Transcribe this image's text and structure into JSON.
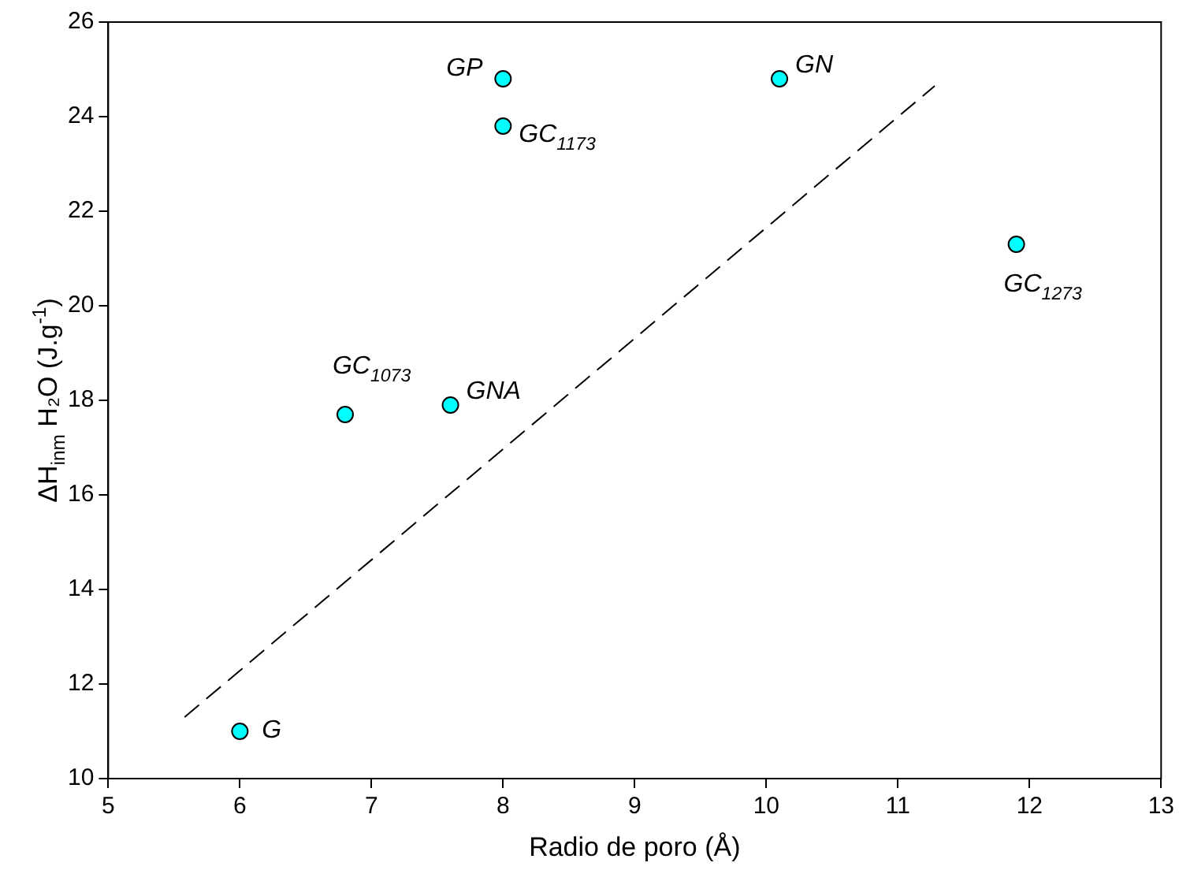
{
  "chart_data": {
    "type": "scatter",
    "xlabel": "Radio de poro (Å)",
    "ylabel": "ΔH$_{inm}$ H₂O (J.g$^{-1}$)",
    "xlim": [
      5,
      13
    ],
    "xticks": [
      5,
      6,
      7,
      8,
      9,
      10,
      11,
      12,
      13
    ],
    "ylim": [
      10,
      26
    ],
    "yticks": [
      10,
      12,
      14,
      16,
      18,
      20,
      22,
      24,
      26
    ],
    "grid": false,
    "legend": false,
    "marker": "circle",
    "series": [
      {
        "color": "#00ffff",
        "x": [
          6.0,
          6.8,
          7.6,
          8.0,
          8.0,
          10.1,
          11.9
        ],
        "values": [
          11.0,
          17.7,
          17.9,
          24.8,
          23.8,
          24.8,
          21.3
        ]
      },
      {
        "type": "line",
        "color": "#000000",
        "line_style": "dashed",
        "marker": "none",
        "x": [
          5.58,
          11.28
        ],
        "values": [
          11.3,
          24.65
        ]
      }
    ],
    "annotations": [
      {
        "text": "G",
        "x": 6.0,
        "y": 11.0
      },
      {
        "text": "GC$_{1073}$",
        "x": 6.8,
        "y": 17.7
      },
      {
        "text": "GNA",
        "x": 7.6,
        "y": 17.9
      },
      {
        "text": "GP",
        "x": 8.0,
        "y": 24.8
      },
      {
        "text": "GC$_{1173}$",
        "x": 8.0,
        "y": 23.8
      },
      {
        "text": "GN",
        "x": 10.1,
        "y": 24.8
      },
      {
        "text": "GC$_{1273}$",
        "x": 11.9,
        "y": 21.3
      }
    ]
  }
}
